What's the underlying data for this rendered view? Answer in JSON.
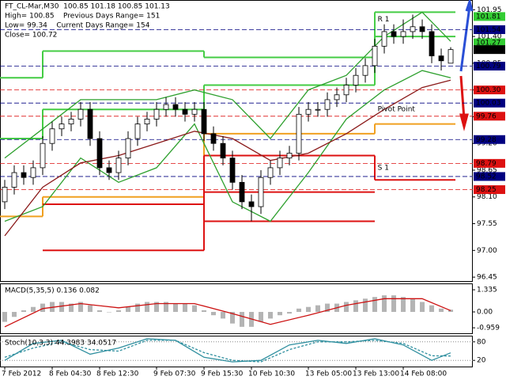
{
  "chart_data": [
    {
      "type": "candlestick",
      "title": "FT_CL-Mar,M30  100.85 101.18 100.85 101.13",
      "info": [
        "High= 100.85    Previous Days Range= 151",
        "Low= 99.34    Current Days Range= 154",
        "Close= 100.72"
      ],
      "categories": [
        "7 Feb 2012",
        null,
        null,
        null,
        null,
        "8 Feb 04:30",
        null,
        null,
        null,
        null,
        "8 Feb 12:30",
        null,
        null,
        null,
        null,
        null,
        "9 Feb 07:30",
        null,
        null,
        null,
        null,
        "9 Feb 15:30",
        null,
        null,
        null,
        null,
        "10 Feb 10:30",
        null,
        null,
        null,
        null,
        null,
        "13 Feb 05:00",
        null,
        null,
        null,
        null,
        "13 Feb 13:00",
        null,
        null,
        null,
        null,
        "14 Feb 08:00",
        null,
        null,
        null,
        null,
        null
      ],
      "open": [
        98.0,
        98.3,
        98.6,
        98.5,
        98.7,
        99.2,
        99.5,
        99.6,
        99.7,
        99.9,
        99.3,
        98.7,
        98.6,
        98.9,
        99.3,
        99.6,
        99.7,
        99.9,
        100.0,
        99.9,
        99.8,
        99.9,
        99.4,
        99.2,
        98.9,
        98.4,
        98.0,
        97.9,
        98.5,
        98.7,
        98.9,
        99.0,
        99.8,
        99.9,
        99.9,
        100.1,
        100.2,
        100.4,
        100.6,
        100.8,
        101.2,
        101.5,
        101.4,
        101.5,
        101.6,
        101.5,
        101.0,
        100.85
      ],
      "high": [
        98.45,
        98.75,
        98.75,
        98.85,
        99.35,
        99.65,
        99.75,
        99.85,
        100.05,
        100.05,
        99.45,
        98.85,
        99.05,
        99.45,
        99.75,
        99.85,
        100.05,
        100.15,
        100.15,
        100.05,
        100.05,
        100.05,
        99.55,
        99.35,
        99.05,
        98.55,
        98.15,
        98.65,
        98.85,
        99.05,
        99.15,
        99.95,
        100.05,
        100.05,
        100.25,
        100.35,
        100.55,
        100.75,
        100.95,
        101.35,
        101.65,
        101.65,
        101.75,
        101.85,
        101.75,
        101.65,
        101.15,
        101.18
      ],
      "low": [
        97.85,
        98.15,
        98.35,
        98.35,
        98.55,
        99.05,
        99.35,
        99.45,
        99.55,
        99.15,
        98.55,
        98.45,
        98.45,
        98.75,
        99.15,
        99.45,
        99.55,
        99.75,
        99.75,
        99.65,
        99.65,
        99.25,
        99.05,
        98.75,
        98.25,
        97.85,
        97.6,
        97.75,
        98.35,
        98.55,
        98.75,
        98.85,
        99.65,
        99.75,
        99.75,
        99.95,
        100.05,
        100.25,
        100.45,
        100.65,
        101.05,
        101.25,
        101.25,
        101.35,
        101.35,
        100.85,
        100.7,
        100.85
      ],
      "close": [
        98.3,
        98.6,
        98.5,
        98.7,
        99.2,
        99.5,
        99.6,
        99.7,
        99.9,
        99.3,
        98.7,
        98.6,
        98.9,
        99.3,
        99.6,
        99.7,
        99.9,
        100.0,
        99.9,
        99.8,
        99.9,
        99.4,
        99.2,
        98.9,
        98.4,
        98.0,
        97.9,
        98.5,
        98.7,
        98.9,
        99.0,
        99.8,
        99.9,
        99.9,
        100.1,
        100.2,
        100.4,
        100.6,
        100.8,
        101.2,
        101.5,
        101.4,
        101.5,
        101.6,
        101.5,
        101.0,
        100.9,
        101.13
      ],
      "xlim": [
        -0.5,
        49.33
      ],
      "ylim": [
        96.37,
        102.15
      ],
      "yticks": [
        101.95,
        {
          "value": 101.4,
          "label": "101.40"
        },
        100.85,
        {
          "value": 100.3,
          "label": "100.30"
        },
        99.75,
        {
          "value": 99.2,
          "label": "99.20"
        },
        98.65,
        {
          "value": 98.1,
          "label": "98.10"
        },
        97.55,
        {
          "value": 97.0,
          "label": "97.00"
        },
        96.45
      ],
      "series": [
        {
          "color": "#2ea02e",
          "x": [
            0,
            4,
            8,
            12,
            16,
            20,
            24,
            28,
            32,
            36,
            40,
            44,
            47
          ],
          "values": [
            98.9,
            99.5,
            100.1,
            100.1,
            100.1,
            100.3,
            100.1,
            99.3,
            100.3,
            100.6,
            101.4,
            101.9,
            101.3
          ]
        },
        {
          "color": "#2ea02e",
          "x": [
            0,
            4,
            8,
            12,
            16,
            20,
            24,
            28,
            32,
            36,
            40,
            44,
            47
          ],
          "values": [
            97.6,
            97.9,
            98.9,
            98.4,
            98.7,
            99.6,
            98.0,
            97.6,
            98.6,
            99.7,
            100.3,
            100.7,
            100.55
          ]
        },
        {
          "color": "#8b1a1a",
          "x": [
            0,
            4,
            8,
            12,
            16,
            20,
            24,
            28,
            32,
            36,
            40,
            44,
            47
          ],
          "values": [
            97.3,
            98.3,
            98.8,
            98.95,
            99.2,
            99.45,
            99.3,
            98.85,
            99.0,
            99.4,
            99.9,
            100.35,
            100.5
          ]
        }
      ],
      "step_x": [
        -0.5,
        4,
        21,
        39,
        47.5
      ],
      "steps": [
        {
          "color": "#44cc44",
          "values": [
            100.55,
            101.1,
            100.97,
            101.9
          ]
        },
        {
          "color": "#44cc44",
          "values": [
            99.3,
            99.9,
            100.4,
            101.4
          ]
        },
        {
          "color": "#f0a020",
          "values": [
            97.7,
            98.1,
            99.4,
            99.6
          ]
        },
        {
          "color": "#dd1111",
          "values": [
            null,
            97.95,
            98.95,
            98.45
          ]
        },
        {
          "color": "#dd1111",
          "values": [
            null,
            97.0,
            98.2,
            null
          ]
        },
        {
          "color": "#dd1111",
          "values": [
            null,
            null,
            97.6,
            null
          ]
        }
      ],
      "annotations": [
        {
          "text": "R 1",
          "x": 39.3,
          "y": 101.75,
          "color": "#44cc44"
        },
        {
          "text": "Pivot Point",
          "x": 39.3,
          "y": 99.9,
          "color": "#f0a020"
        },
        {
          "text": "S 1",
          "x": 39.3,
          "y": 98.7,
          "color": "#dd1111"
        }
      ],
      "levels": [
        {
          "value": 101.81,
          "color": "#33cc33",
          "dashed": false
        },
        {
          "value": 101.54,
          "color": "#000080",
          "dashed": true
        },
        {
          "value": 101.27,
          "color": "#33cc33",
          "dashed": false
        },
        {
          "value": 101.13,
          "color": "#000000",
          "dashed": false
        },
        {
          "value": 100.79,
          "color": "#000080",
          "dashed": true
        },
        {
          "value": 100.3,
          "label": "100.30",
          "color": "#dd1111",
          "dashed": true
        },
        {
          "value": 100.03,
          "color": "#000080",
          "dashed": true
        },
        {
          "value": 99.76,
          "color": "#dd1111",
          "dashed": true
        },
        {
          "value": 99.28,
          "color": "#000080",
          "dashed": true
        },
        {
          "value": 98.79,
          "color": "#dd1111",
          "dashed": true
        },
        {
          "value": 98.52,
          "color": "#000080",
          "dashed": true
        },
        {
          "value": 98.25,
          "color": "#dd1111",
          "dashed": true
        }
      ]
    },
    {
      "type": "macd",
      "title": "MACD(5,35,5) 0.136 0.082",
      "ylim": [
        -1.29,
        1.72
      ],
      "yticks": [
        1.335,
        {
          "value": 0,
          "label": "0.00"
        },
        -0.959
      ],
      "values": [
        -0.6,
        -0.3,
        0.1,
        0.3,
        0.5,
        0.6,
        0.6,
        0.5,
        0.6,
        0.4,
        0.1,
        0.0,
        0.1,
        0.3,
        0.5,
        0.6,
        0.6,
        0.6,
        0.5,
        0.5,
        0.4,
        0.1,
        -0.2,
        -0.4,
        -0.7,
        -0.9,
        -0.9,
        -0.6,
        -0.4,
        -0.2,
        -0.1,
        0.2,
        0.3,
        0.4,
        0.5,
        0.5,
        0.6,
        0.7,
        0.8,
        0.9,
        1.0,
        1.0,
        0.9,
        0.8,
        0.6,
        0.4,
        0.2,
        0.136
      ],
      "color": "#b4b4b4",
      "series": [
        {
          "color": "#cc1111",
          "x": [
            0,
            4,
            8,
            12,
            16,
            20,
            24,
            28,
            32,
            36,
            40,
            44,
            47
          ],
          "values": [
            -0.9,
            0.2,
            0.5,
            0.25,
            0.5,
            0.5,
            -0.1,
            -0.75,
            -0.2,
            0.4,
            0.8,
            0.8,
            0.082
          ]
        }
      ]
    },
    {
      "type": "line",
      "title": "Stoch(10,3,3) 44.3983 34.0517",
      "ylim": [
        0,
        100
      ],
      "yticks": [
        80,
        20
      ],
      "series": [
        {
          "color": "#2f8f9f",
          "x": [
            0,
            3,
            6,
            9,
            12,
            15,
            18,
            21,
            24,
            27,
            30,
            33,
            36,
            39,
            42,
            45,
            47
          ],
          "values": [
            20,
            75,
            85,
            40,
            60,
            90,
            85,
            30,
            15,
            20,
            70,
            85,
            75,
            90,
            70,
            20,
            44.3983
          ]
        },
        {
          "color": "#2f8f9f",
          "dashed": true,
          "x": [
            0,
            3,
            6,
            9,
            12,
            15,
            18,
            21,
            24,
            27,
            30,
            33,
            36,
            39,
            42,
            45,
            47
          ],
          "values": [
            30,
            60,
            80,
            55,
            50,
            85,
            85,
            45,
            20,
            15,
            55,
            80,
            80,
            85,
            75,
            35,
            34.0517
          ]
        }
      ]
    }
  ]
}
